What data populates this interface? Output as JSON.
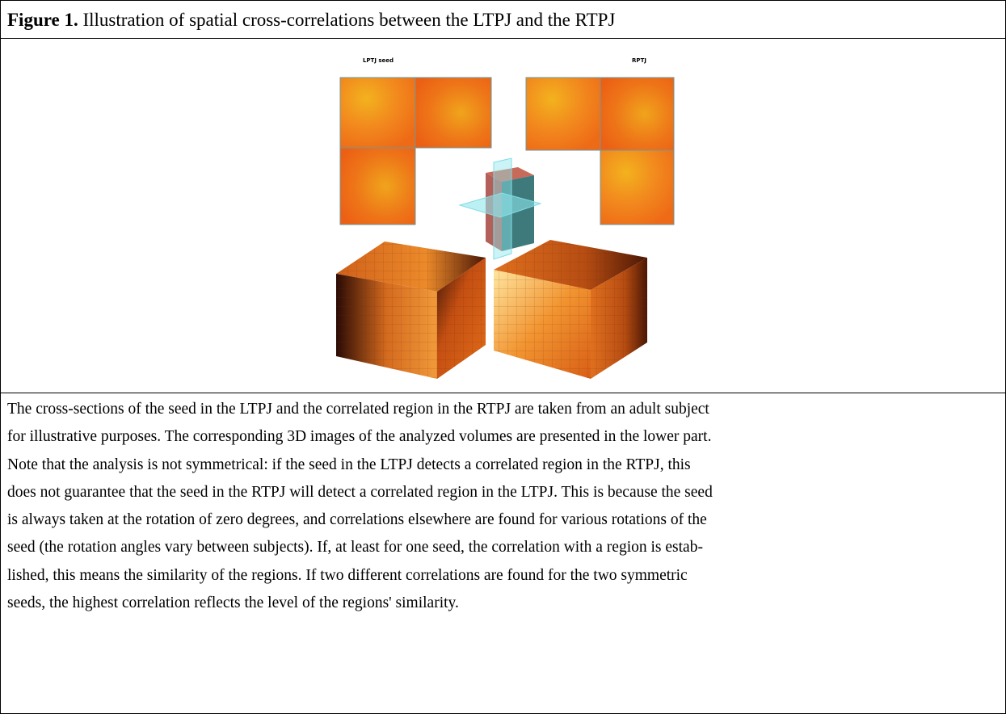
{
  "figure": {
    "label": "Figure 1.",
    "title": "Illustration of spatial cross-correlations between the LTPJ and the RTPJ",
    "panels": [
      {
        "label": "LPTJ seed"
      },
      {
        "label": "RPTJ"
      }
    ]
  },
  "caption": {
    "lines": [
      "The cross-sections of the seed in the LTPJ and the correlated region in the RTPJ are taken from an adult subject",
      "for illustrative purposes. The corresponding 3D images of the analyzed volumes are presented in the lower part.",
      "Note that the analysis is not symmetrical: if the seed in the LTPJ detects a correlated region in the RTPJ, this",
      "does not guarantee that the seed in the RTPJ will detect a correlated region in the LTPJ. This is because the seed",
      "is always taken at the rotation of zero degrees, and correlations elsewhere are found for various rotations of the",
      "seed (the rotation angles vary between subjects). If, at least for one seed, the correlation with a region is estab-",
      "lished, this means the similarity of the regions. If two different correlations are found for the two symmetric",
      "seeds, the highest correlation reflects the level of the regions' similarity."
    ]
  }
}
